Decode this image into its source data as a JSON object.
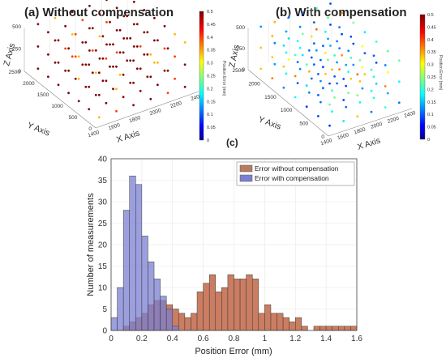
{
  "chart_data": [
    {
      "type": "scatter",
      "title": "(a) Without compensation",
      "xlabel": "X Axis",
      "ylabel": "Y Axis",
      "zlabel": "Z Axis",
      "x_ticks": [
        "1400",
        "1600",
        "1800",
        "2000",
        "2200",
        "2400"
      ],
      "y_ticks": [
        "0",
        "500",
        "1000",
        "1500",
        "2000",
        "2500"
      ],
      "z_ticks": [
        "0",
        "250",
        "500"
      ],
      "colorbar": {
        "label": "Position Error (mm)",
        "ticks": [
          "0",
          "0.05",
          "0.1",
          "0.15",
          "0.2",
          "0.25",
          "0.3",
          "0.35",
          "0.4",
          "0.45",
          "0.5"
        ],
        "range": [
          0,
          0.5
        ],
        "colormap": "jet"
      }
    },
    {
      "type": "scatter",
      "title": "(b) With compensation",
      "xlabel": "X Axis",
      "ylabel": "Y Axis",
      "zlabel": "Z Axis",
      "x_ticks": [
        "1400",
        "1600",
        "1800",
        "2000",
        "2200",
        "2400"
      ],
      "y_ticks": [
        "0",
        "500",
        "1000",
        "1500",
        "2000",
        "2500"
      ],
      "z_ticks": [
        "0",
        "250",
        "500"
      ],
      "colorbar": {
        "label": "Position Error (mm)",
        "ticks": [
          "0",
          "0.05",
          "0.1",
          "0.15",
          "0.2",
          "0.25",
          "0.3",
          "0.35",
          "0.4",
          "0.45",
          "0.5"
        ],
        "range": [
          0,
          0.5
        ],
        "colormap": "jet"
      }
    },
    {
      "type": "bar",
      "title": "(c)",
      "xlabel": "Position Error (mm)",
      "ylabel": "Number of measurements",
      "xlim": [
        0,
        1.6
      ],
      "ylim": [
        0,
        40
      ],
      "bin_width": 0.04,
      "x_ticks": [
        "0",
        "0.2",
        "0.4",
        "0.6",
        "0.8",
        "1",
        "1.2",
        "1.4",
        "1.6"
      ],
      "y_ticks": [
        "0",
        "5",
        "10",
        "15",
        "20",
        "25",
        "30",
        "35",
        "40"
      ],
      "legend_position": "top-right",
      "grid": true,
      "series": [
        {
          "name": "Error without compensation",
          "color": "#c8765a",
          "bin_starts": [
            0.0,
            0.04,
            0.08,
            0.12,
            0.16,
            0.2,
            0.24,
            0.28,
            0.32,
            0.36,
            0.4,
            0.44,
            0.48,
            0.52,
            0.56,
            0.6,
            0.64,
            0.68,
            0.72,
            0.76,
            0.8,
            0.84,
            0.88,
            0.92,
            0.96,
            1.0,
            1.04,
            1.08,
            1.12,
            1.16,
            1.2,
            1.24,
            1.28,
            1.32,
            1.36,
            1.4,
            1.44,
            1.48,
            1.52,
            1.56
          ],
          "counts": [
            0,
            0,
            1,
            2,
            3,
            4,
            6,
            7,
            7,
            6,
            5,
            4,
            3,
            4,
            9,
            11,
            13,
            9,
            10,
            13,
            12,
            12,
            13,
            12,
            4,
            6,
            4,
            4,
            3,
            2,
            3,
            1,
            0,
            1,
            1,
            1,
            1,
            1,
            1,
            1
          ]
        },
        {
          "name": "Error with compensation",
          "color": "#7b7fd1",
          "bin_starts": [
            0.0,
            0.04,
            0.08,
            0.12,
            0.16,
            0.2,
            0.24,
            0.28,
            0.32,
            0.36,
            0.4,
            0.44
          ],
          "counts": [
            3,
            10,
            28,
            36,
            34,
            22,
            16,
            12,
            8,
            5,
            1,
            0
          ]
        }
      ]
    }
  ]
}
